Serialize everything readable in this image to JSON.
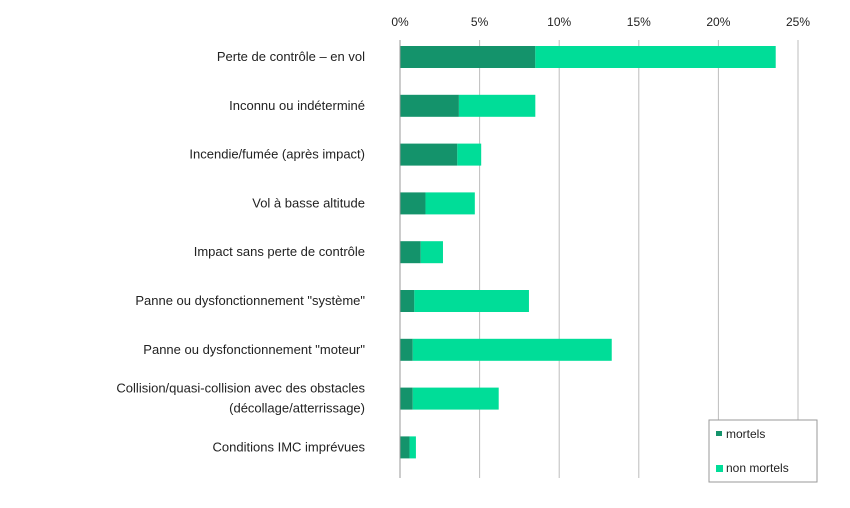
{
  "chart_data": {
    "type": "bar",
    "orientation": "horizontal",
    "stacked": true,
    "title": "",
    "xlabel": "",
    "ylabel": "",
    "xlim": [
      0,
      25
    ],
    "x_ticks": [
      "0%",
      "5%",
      "10%",
      "15%",
      "20%",
      "25%"
    ],
    "grid": true,
    "legend_position": "bottom-right",
    "categories": [
      [
        "Perte de contrôle – en vol"
      ],
      [
        "Inconnu ou indéterminé"
      ],
      [
        "Incendie/fumée (après impact)"
      ],
      [
        "Vol à basse altitude"
      ],
      [
        "Impact sans perte de contrôle"
      ],
      [
        "Panne ou dysfonctionnement \"système\""
      ],
      [
        "Panne ou dysfonctionnement \"moteur\""
      ],
      [
        "Collision/quasi-collision avec des obstacles",
        "(décollage/atterrissage)"
      ],
      [
        "Conditions IMC imprévues"
      ]
    ],
    "series": [
      {
        "name": "mortels",
        "color": "#14936b",
        "values": [
          8.5,
          3.7,
          3.6,
          1.6,
          1.3,
          0.9,
          0.8,
          0.8,
          0.6
        ]
      },
      {
        "name": "non mortels",
        "color": "#00dd98",
        "values": [
          15.1,
          4.8,
          1.5,
          3.1,
          1.4,
          7.2,
          12.5,
          5.4,
          0.4
        ]
      }
    ]
  }
}
